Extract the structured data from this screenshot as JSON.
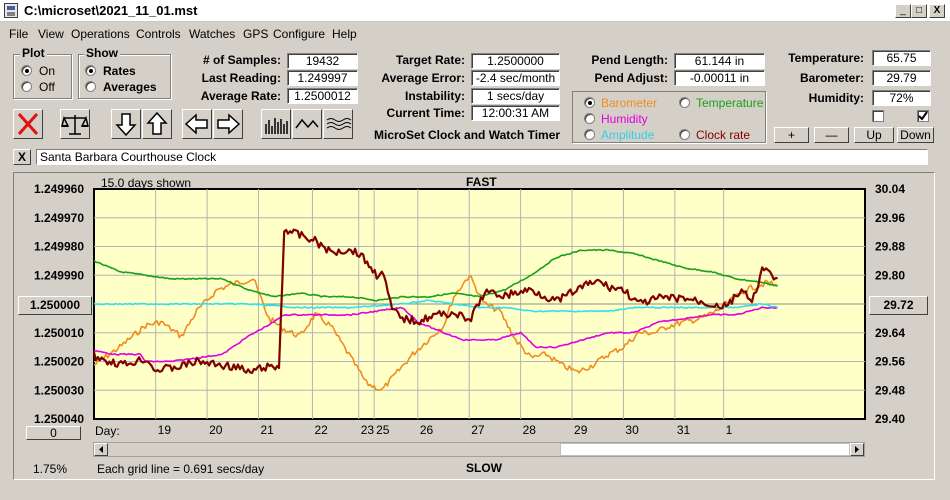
{
  "window": {
    "title": "C:\\microset\\2021_11_01.mst",
    "min": "_",
    "max": "□",
    "close": "X"
  },
  "menu": [
    "File",
    "View",
    "Operations",
    "Controls",
    "Watches",
    "GPS",
    "Configure",
    "Help"
  ],
  "plot_group": {
    "title": "Plot",
    "on": "On",
    "off": "Off",
    "selected": "On"
  },
  "show_group": {
    "title": "Show",
    "rates": "Rates",
    "averages": "Averages",
    "selected": "Rates"
  },
  "stats": {
    "samples_label": "# of Samples:",
    "samples": "19432",
    "last_label": "Last Reading:",
    "last": "1.249997",
    "avg_label": "Average Rate:",
    "avg": "1.2500012",
    "target_label": "Target Rate:",
    "target": "1.2500000",
    "error_label": "Average Error:",
    "error": "-2.4 sec/month",
    "instab_label": "Instability:",
    "instab": "1 secs/day",
    "time_label": "Current Time:",
    "time": "12:00:31 AM",
    "pend_len_label": "Pend Length:",
    "pend_len": "61.144 in",
    "pend_adj_label": "Pend Adjust:",
    "pend_adj": "-0.00011 in",
    "temp_label": "Temperature:",
    "temp": "65.75",
    "baro_label": "Barometer:",
    "baro": "29.79",
    "hum_label": "Humidity:",
    "hum": "72%"
  },
  "app_name": "MicroSet Clock and Watch Timer",
  "sensors": {
    "barometer": "Barometer",
    "temperature": "Temperature",
    "humidity": "Humidity",
    "amplitude": "Amplitude",
    "clockrate": "Clock rate",
    "selected": "Barometer"
  },
  "adjust_buttons": {
    "plus": "+",
    "minus": "—",
    "up": "Up",
    "down": "Down"
  },
  "checkboxes": [
    {
      "checked": false
    },
    {
      "checked": true
    }
  ],
  "clock_close": "X",
  "clock_name": "Santa Barbara Courthouse Clock",
  "colors": {
    "barometer": "#f08c1e",
    "temperature": "#18a018",
    "humidity": "#e000e0",
    "amplitude": "#30e0f0",
    "clockrate": "#800000"
  },
  "chart_data": {
    "type": "line",
    "title": "FAST",
    "bottom_label": "SLOW",
    "days_shown": "15.0 days shown",
    "grid_note": "Each grid line = 0.691 secs/day",
    "percent": "1.75%",
    "left_axis": {
      "ticks": [
        "1.249960",
        "1.249970",
        "1.249980",
        "1.249990",
        "1.250000",
        "1.250010",
        "1.250020",
        "1.250030",
        "1.250040"
      ],
      "range": [
        1.24996,
        1.25004
      ],
      "reversed": true
    },
    "right_axis": {
      "ticks": [
        "30.04",
        "29.96",
        "29.88",
        "29.80",
        "29.72",
        "29.64",
        "29.56",
        "29.48",
        "29.40"
      ],
      "range": [
        29.4,
        30.04
      ]
    },
    "left_box": "1.250000",
    "right_box": "29.72",
    "bottom_box": "0",
    "x_label": "Day:",
    "x_ticks": [
      "19",
      "20",
      "21",
      "22",
      "23",
      "25",
      "26",
      "27",
      "28",
      "29",
      "30",
      "31",
      "1"
    ],
    "x_range": [
      0,
      15
    ],
    "x_tick_pos": [
      1.2,
      2.2,
      3.2,
      4.25,
      5.15,
      5.45,
      6.3,
      7.3,
      8.3,
      9.3,
      10.3,
      11.3,
      12.25
    ],
    "series": [
      {
        "name": "Barometer",
        "axis": "right",
        "color": "#f08c1e",
        "x": [
          0,
          0.5,
          1,
          1.3,
          1.7,
          2,
          2.4,
          2.8,
          3.1,
          3.4,
          3.7,
          4,
          4.3,
          4.6,
          5,
          5.3,
          5.6,
          5.9,
          6.2,
          6.5,
          6.8,
          7,
          7.3,
          7.6,
          7.9,
          8.2,
          8.5,
          8.8,
          9.1,
          9.4,
          9.7,
          10,
          10.3,
          10.6,
          10.9,
          11.2,
          11.5,
          11.8,
          12.1,
          12.4,
          12.7,
          13.1,
          13.3
        ],
        "y": [
          29.55,
          29.6,
          29.66,
          29.67,
          29.63,
          29.7,
          29.76,
          29.78,
          29.79,
          29.68,
          29.65,
          29.63,
          29.69,
          29.66,
          29.57,
          29.5,
          29.48,
          29.53,
          29.58,
          29.62,
          29.66,
          29.74,
          29.8,
          29.72,
          29.7,
          29.62,
          29.57,
          29.58,
          29.55,
          29.53,
          29.55,
          29.58,
          29.6,
          29.64,
          29.64,
          29.66,
          29.67,
          29.68,
          29.7,
          29.73,
          29.76,
          29.78,
          29.77
        ]
      },
      {
        "name": "Temperature",
        "axis": "right",
        "color": "#18a018",
        "x": [
          0,
          0.5,
          1,
          1.5,
          2,
          2.5,
          3,
          3.5,
          4,
          4.5,
          5,
          5.5,
          6,
          6.5,
          7,
          7.5,
          8,
          8.5,
          9,
          9.5,
          10,
          10.5,
          11,
          11.5,
          12,
          12.5,
          13,
          13.3
        ],
        "y": [
          29.84,
          29.81,
          29.8,
          29.79,
          29.79,
          29.79,
          29.76,
          29.74,
          29.75,
          29.74,
          29.74,
          29.73,
          29.74,
          29.74,
          29.75,
          29.74,
          29.76,
          29.8,
          29.85,
          29.87,
          29.87,
          29.86,
          29.84,
          29.82,
          29.81,
          29.79,
          29.78,
          29.77
        ]
      },
      {
        "name": "Humidity",
        "axis": "right",
        "color": "#e000e0",
        "x": [
          0,
          0.4,
          0.9,
          1,
          1.5,
          2,
          2.5,
          3,
          3.5,
          3.7,
          4,
          5,
          6,
          6.3,
          6.8,
          7.2,
          7.8,
          8.3,
          8.6,
          9,
          9.5,
          10,
          10.5,
          11,
          11.5,
          12,
          12.5,
          13,
          13.3
        ],
        "y": [
          29.59,
          29.58,
          29.58,
          29.56,
          29.56,
          29.57,
          29.58,
          29.63,
          29.67,
          29.69,
          29.69,
          29.69,
          29.71,
          29.67,
          29.64,
          29.62,
          29.62,
          29.64,
          29.6,
          29.6,
          29.62,
          29.64,
          29.64,
          29.67,
          29.68,
          29.69,
          29.69,
          29.71,
          29.71
        ]
      },
      {
        "name": "Amplitude",
        "axis": "right",
        "color": "#30e0f0",
        "x": [
          0,
          1,
          2,
          3,
          4,
          5,
          6,
          6.5,
          7,
          7.5,
          8,
          8.5,
          9,
          9.5,
          10,
          10.5,
          11,
          11.5,
          12,
          12.5,
          13,
          13.3
        ],
        "y": [
          29.72,
          29.72,
          29.72,
          29.72,
          29.71,
          29.71,
          29.72,
          29.73,
          29.72,
          29.71,
          29.71,
          29.7,
          29.7,
          29.7,
          29.7,
          29.71,
          29.71,
          29.71,
          29.71,
          29.71,
          29.72,
          29.71
        ]
      },
      {
        "name": "Clock rate",
        "axis": "left",
        "color": "#800000",
        "x": [
          0,
          0.3,
          0.6,
          1,
          1.2,
          1.6,
          2,
          2.4,
          2.8,
          3,
          3.3,
          3.6,
          3.7,
          4,
          4.3,
          4.6,
          5,
          5.2,
          5.5,
          5.6,
          5.8,
          6,
          6.3,
          6.6,
          7,
          7.3,
          7.6,
          8,
          8.5,
          9,
          9.5,
          9.8,
          10,
          10.3,
          10.6,
          11,
          11.5,
          12,
          12.3,
          12.6,
          12.8,
          13,
          13.3
        ],
        "y": [
          1.250018,
          1.25002,
          1.250021,
          1.250019,
          1.250023,
          1.250022,
          1.25002,
          1.250021,
          1.250022,
          1.250024,
          1.250022,
          1.250022,
          1.249974,
          1.249976,
          1.249978,
          1.249982,
          1.249981,
          1.249983,
          1.24999,
          1.249988,
          1.250002,
          1.250005,
          1.250006,
          1.250004,
          1.250003,
          1.250006,
          1.249996,
          1.249997,
          1.249995,
          1.249999,
          1.249994,
          1.249992,
          1.249994,
          1.249995,
          1.25,
          1.249998,
          1.249998,
          1.25,
          1.250001,
          1.249995,
          1.25,
          1.249988,
          1.249991
        ]
      }
    ]
  }
}
